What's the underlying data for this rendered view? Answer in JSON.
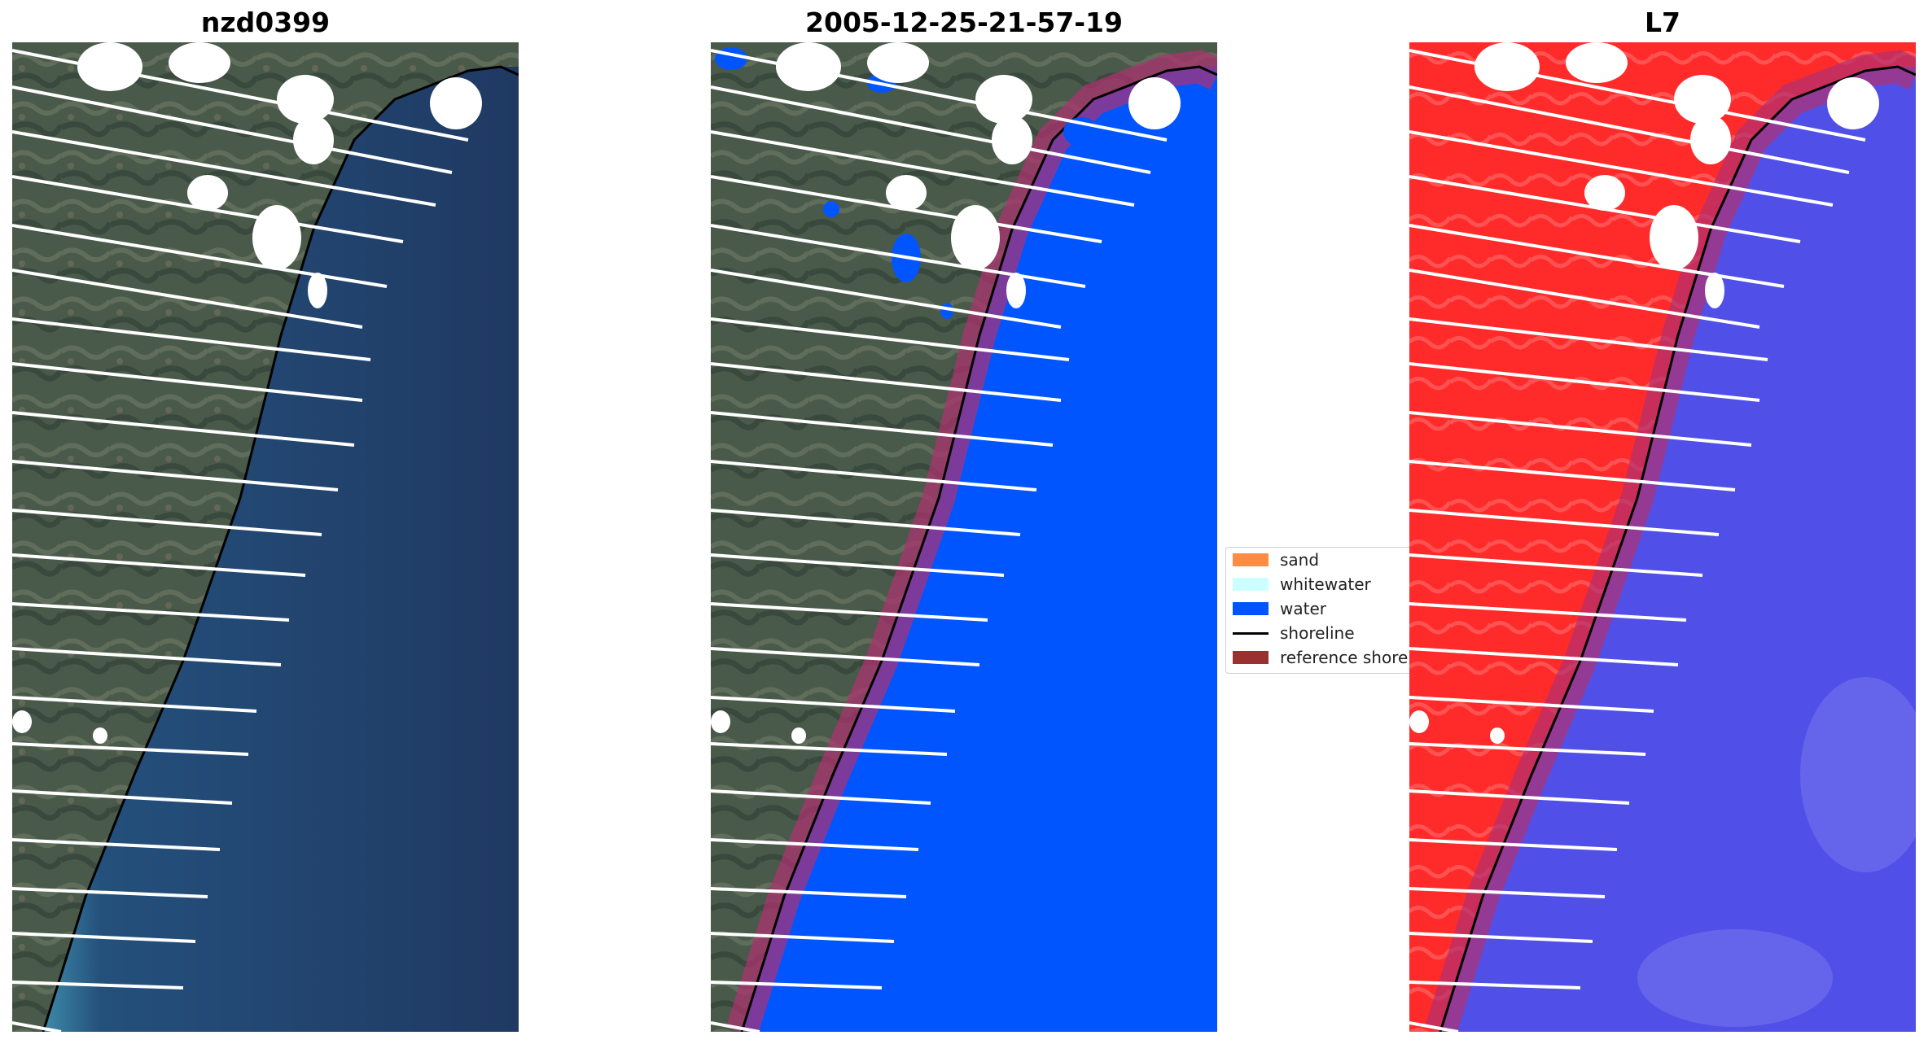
{
  "panels": [
    {
      "title": "nzd0399",
      "name": "rgb-panel"
    },
    {
      "title": "2005-12-25-21-57-19",
      "name": "classified-panel"
    },
    {
      "title": "L7",
      "name": "index-panel"
    }
  ],
  "legend": {
    "items": [
      {
        "label": "sand",
        "color": "#ff8c42"
      },
      {
        "label": "whitewater",
        "color": "#ccffff"
      },
      {
        "label": "water",
        "color": "#0055ff"
      },
      {
        "label": "shoreline",
        "color": "#000000"
      },
      {
        "label": "reference shoreli…",
        "color": "#9b3030"
      }
    ]
  },
  "colors": {
    "land_dark": "#3a4b3c",
    "land_light": "#6c7566",
    "sea_deep": "#1f3a66",
    "sea_shallow": "#3e86a8",
    "water_class": "#0055ff",
    "index_land": "#ff2a2a",
    "index_water": "#5555ee",
    "reference_buffer": "#b03070"
  }
}
